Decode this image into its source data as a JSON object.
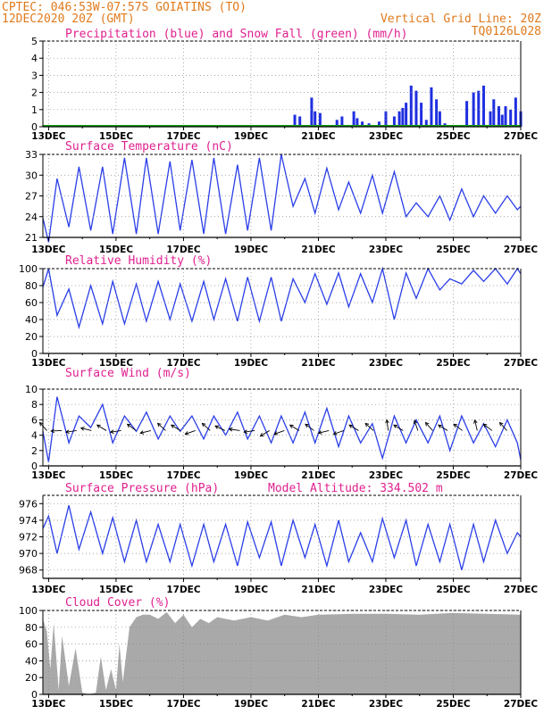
{
  "header": {
    "line1_left": "CPTEC:  046:53W-07:57S  GOIATINS (TO)",
    "line2_left": "12DEC2020 20Z (GMT)",
    "line2_right": "Vertical Grid Line: 20Z",
    "line3_right": "TQ0126L028"
  },
  "colors": {
    "header": "#e07a1c",
    "title": "#e0208f",
    "precip": "#1f2fe0",
    "snow": "#14a014",
    "line": "#2a3ee8",
    "cloud": "#a9a9a9"
  },
  "x_ticks": [
    "13DEC",
    "15DEC",
    "17DEC",
    "19DEC",
    "21DEC",
    "23DEC",
    "25DEC",
    "27DEC"
  ],
  "chart_data": [
    {
      "id": "precip",
      "type": "bar",
      "title": "Precipitation (blue) and Snow Fall (green) (mm/h)",
      "ylim": [
        0,
        5
      ],
      "yticks": [
        0,
        1,
        2,
        3,
        4,
        5
      ],
      "grid": true,
      "x_day_range": [
        12.83,
        27.0
      ],
      "series": [
        {
          "name": "precipitation",
          "color": "#1f2fe0",
          "x": [
            20.3,
            20.45,
            20.8,
            20.9,
            21.05,
            21.55,
            21.7,
            22.05,
            22.15,
            22.3,
            22.5,
            22.8,
            23.0,
            23.25,
            23.4,
            23.5,
            23.6,
            23.75,
            23.9,
            24.05,
            24.2,
            24.35,
            24.5,
            24.6,
            24.75,
            24.9,
            25.4,
            25.6,
            25.75,
            25.9,
            26.1,
            26.2,
            26.35,
            26.45,
            26.55,
            26.7,
            26.85,
            27.0
          ],
          "values": [
            0.7,
            0.6,
            1.7,
            0.9,
            0.8,
            0.4,
            0.6,
            0.9,
            0.5,
            0.3,
            0.2,
            0.3,
            0.9,
            0.6,
            0.9,
            1.1,
            1.4,
            2.4,
            2.1,
            1.4,
            0.4,
            2.3,
            1.6,
            0.9,
            0.2,
            0.1,
            1.5,
            2.0,
            2.1,
            2.4,
            0.9,
            1.6,
            1.2,
            0.7,
            1.2,
            1.0,
            1.7,
            0.9
          ]
        },
        {
          "name": "snow fall",
          "color": "#14a014",
          "values": [
            0
          ]
        }
      ]
    },
    {
      "id": "temp",
      "type": "line",
      "title": "Surface Temperature (nC)",
      "ylim": [
        21,
        33
      ],
      "yticks": [
        21,
        24,
        27,
        30,
        33
      ],
      "grid": true,
      "x": [
        12.83,
        13.0,
        13.25,
        13.6,
        13.9,
        14.25,
        14.6,
        14.9,
        15.25,
        15.6,
        15.9,
        16.25,
        16.6,
        16.9,
        17.25,
        17.6,
        17.9,
        18.25,
        18.6,
        18.9,
        19.25,
        19.6,
        19.9,
        20.25,
        20.6,
        20.9,
        21.25,
        21.6,
        21.9,
        22.25,
        22.6,
        22.9,
        23.25,
        23.6,
        23.9,
        24.25,
        24.6,
        24.9,
        25.25,
        25.6,
        25.9,
        26.25,
        26.6,
        26.9,
        27.0
      ],
      "values": [
        23.8,
        20.3,
        29.5,
        22.5,
        31.2,
        22.0,
        31.2,
        21.5,
        32.5,
        21.5,
        32.5,
        21.5,
        32.0,
        22.0,
        32.2,
        21.5,
        32.5,
        21.5,
        31.5,
        22.0,
        32.5,
        22.0,
        33.0,
        25.5,
        29.5,
        24.5,
        31.0,
        25.0,
        29.0,
        24.5,
        30.0,
        24.5,
        30.5,
        24.0,
        26.0,
        24.0,
        27.0,
        23.5,
        28.0,
        24.0,
        27.0,
        24.5,
        27.0,
        25.0,
        25.5
      ]
    },
    {
      "id": "rh",
      "type": "line",
      "title": "Relative Humidity (%)",
      "ylim": [
        0,
        100
      ],
      "yticks": [
        0,
        20,
        40,
        60,
        80,
        100
      ],
      "grid": true,
      "x": [
        12.83,
        13.0,
        13.25,
        13.6,
        13.9,
        14.25,
        14.6,
        14.9,
        15.25,
        15.6,
        15.9,
        16.25,
        16.6,
        16.9,
        17.25,
        17.6,
        17.9,
        18.25,
        18.6,
        18.9,
        19.25,
        19.6,
        19.9,
        20.25,
        20.6,
        20.9,
        21.25,
        21.6,
        21.9,
        22.25,
        22.6,
        22.9,
        23.25,
        23.6,
        23.9,
        24.25,
        24.6,
        24.9,
        25.25,
        25.6,
        25.9,
        26.25,
        26.6,
        26.9,
        27.0
      ],
      "values": [
        78,
        100,
        45,
        76,
        31,
        80,
        35,
        85,
        35,
        82,
        38,
        85,
        40,
        82,
        38,
        85,
        40,
        88,
        38,
        90,
        38,
        90,
        38,
        88,
        60,
        94,
        58,
        95,
        55,
        94,
        60,
        100,
        40,
        95,
        65,
        100,
        75,
        88,
        82,
        98,
        85,
        100,
        82,
        100,
        94
      ]
    },
    {
      "id": "wind",
      "type": "line",
      "title": "Surface Wind (m/s)",
      "ylim": [
        0,
        10
      ],
      "yticks": [
        0,
        2,
        4,
        6,
        8,
        10
      ],
      "grid": true,
      "x": [
        12.83,
        13.0,
        13.25,
        13.6,
        13.9,
        14.25,
        14.6,
        14.9,
        15.25,
        15.6,
        15.9,
        16.25,
        16.6,
        16.9,
        17.25,
        17.6,
        17.9,
        18.25,
        18.6,
        18.9,
        19.25,
        19.6,
        19.9,
        20.25,
        20.6,
        20.9,
        21.25,
        21.6,
        21.9,
        22.25,
        22.6,
        22.9,
        23.25,
        23.6,
        23.9,
        24.25,
        24.6,
        24.9,
        25.25,
        25.6,
        25.9,
        26.25,
        26.6,
        26.9,
        27.0
      ],
      "values": [
        4.5,
        0.5,
        9.0,
        3.0,
        6.5,
        5.0,
        8.0,
        3.0,
        6.5,
        4.5,
        7.0,
        3.5,
        6.5,
        4.5,
        6.5,
        3.5,
        6.5,
        4.0,
        7.0,
        3.5,
        6.5,
        3.0,
        6.5,
        3.0,
        7.0,
        3.0,
        7.5,
        2.5,
        6.5,
        3.0,
        5.5,
        1.0,
        6.5,
        3.0,
        6.0,
        3.0,
        6.5,
        2.0,
        6.5,
        3.0,
        5.5,
        2.5,
        6.0,
        3.0,
        0.8
      ]
    },
    {
      "id": "pres",
      "type": "line",
      "title": "Surface Pressure (hPa)",
      "annotation": "Model Altitude: 334.502 m",
      "ylim": [
        967,
        977
      ],
      "yticks": [
        968,
        970,
        972,
        974,
        976
      ],
      "grid": true,
      "x": [
        12.83,
        13.0,
        13.25,
        13.6,
        13.9,
        14.25,
        14.6,
        14.9,
        15.25,
        15.6,
        15.9,
        16.25,
        16.6,
        16.9,
        17.25,
        17.6,
        17.9,
        18.25,
        18.6,
        18.9,
        19.25,
        19.6,
        19.9,
        20.25,
        20.6,
        20.9,
        21.25,
        21.6,
        21.9,
        22.25,
        22.6,
        22.9,
        23.25,
        23.6,
        23.9,
        24.25,
        24.6,
        24.9,
        25.25,
        25.6,
        25.9,
        26.25,
        26.6,
        26.9,
        27.0
      ],
      "values": [
        973.0,
        974.5,
        970.0,
        975.8,
        970.5,
        975.0,
        970.0,
        974.3,
        969.0,
        974.0,
        969.0,
        973.5,
        969.0,
        973.5,
        968.5,
        973.5,
        969.0,
        973.5,
        968.5,
        973.8,
        969.5,
        973.8,
        968.5,
        974.0,
        969.5,
        973.5,
        968.5,
        974.0,
        969.0,
        972.5,
        969.0,
        974.2,
        969.5,
        974.0,
        968.5,
        973.5,
        969.0,
        973.5,
        968.0,
        973.5,
        969.0,
        974.0,
        970.0,
        972.5,
        972.0
      ]
    },
    {
      "id": "cloud",
      "type": "area",
      "title": "Cloud Cover (%)",
      "ylim": [
        0,
        100
      ],
      "yticks": [
        0,
        20,
        40,
        60,
        80,
        100
      ],
      "grid": true,
      "x": [
        12.83,
        12.95,
        13.05,
        13.15,
        13.3,
        13.4,
        13.6,
        13.8,
        14.0,
        14.2,
        14.4,
        14.55,
        14.7,
        14.85,
        15.0,
        15.1,
        15.2,
        15.4,
        15.6,
        15.8,
        16.0,
        16.25,
        16.5,
        16.75,
        17.0,
        17.25,
        17.5,
        17.75,
        18.0,
        18.5,
        19.0,
        19.5,
        20.0,
        20.5,
        21.0,
        22.0,
        23.0,
        24.0,
        25.0,
        26.0,
        27.0
      ],
      "values": [
        90,
        75,
        30,
        85,
        5,
        70,
        10,
        55,
        2,
        0,
        2,
        45,
        5,
        30,
        5,
        60,
        15,
        80,
        92,
        95,
        95,
        90,
        98,
        85,
        95,
        80,
        90,
        85,
        92,
        88,
        92,
        88,
        95,
        92,
        95,
        96,
        96,
        95,
        97,
        96,
        95
      ]
    }
  ]
}
